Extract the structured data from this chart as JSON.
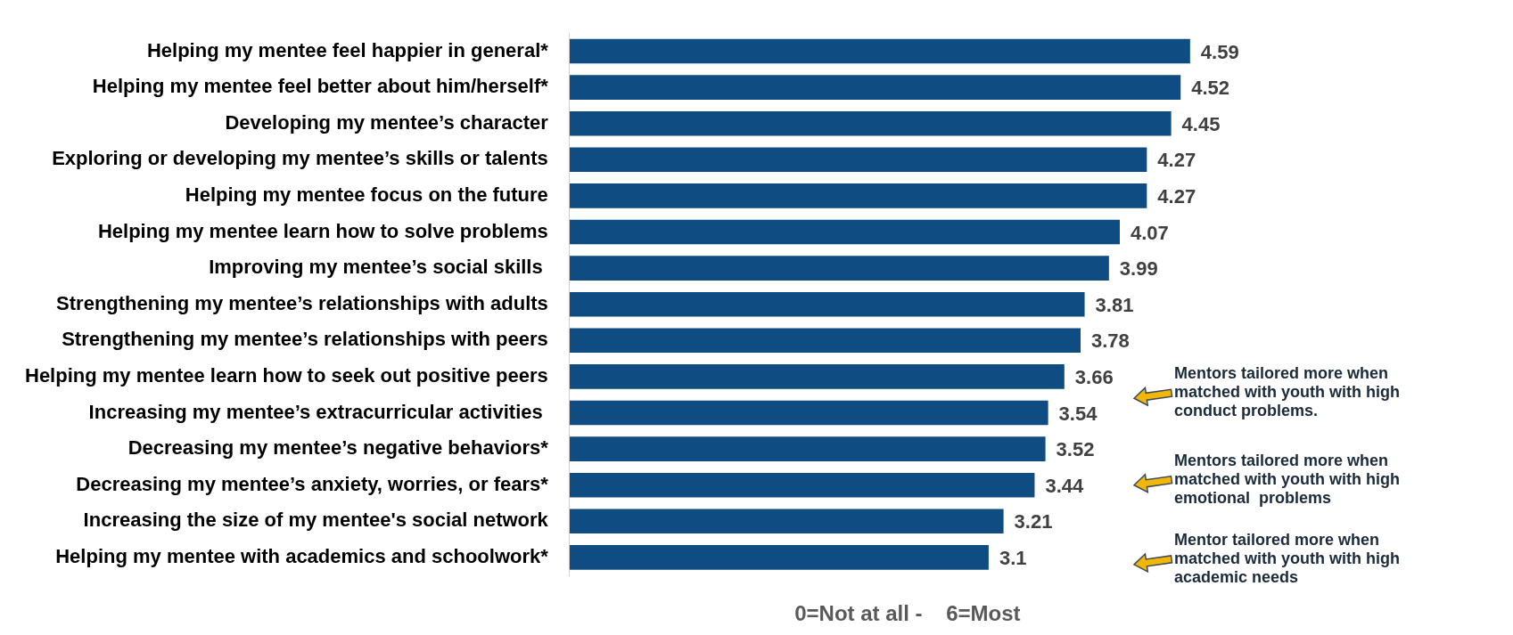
{
  "chart_data": {
    "type": "bar",
    "orientation": "horizontal",
    "categories": [
      "Helping my mentee feel happier in general*",
      "Helping my mentee feel better about him/herself*",
      "Developing my mentee’s character",
      "Exploring or developing my mentee’s skills or talents",
      "Helping my mentee focus on the future",
      "Helping my mentee learn how to solve problems",
      "Improving my mentee’s social skills ",
      "Strengthening my mentee’s relationships with adults",
      "Strengthening my mentee’s relationships with peers",
      "Helping my mentee learn how to seek out positive peers",
      "Increasing my mentee’s extracurricular activities ",
      "Decreasing my mentee’s negative behaviors*",
      "Decreasing my mentee’s anxiety, worries, or fears*",
      "Increasing the size of my mentee's social network",
      "Helping my mentee with academics and schoolwork*"
    ],
    "values": [
      4.59,
      4.52,
      4.45,
      4.27,
      4.27,
      4.07,
      3.99,
      3.81,
      3.78,
      3.66,
      3.54,
      3.52,
      3.44,
      3.21,
      3.1
    ],
    "color": "#0f4c81",
    "xlabel": "0=Not at all -    6=Most",
    "data_labels": true,
    "tick_labels": "y",
    "grid": false,
    "legend": false,
    "annotations": [
      "Mentors tailored more when matched with youth with high conduct problems.",
      "Mentors tailored more when matched with youth with high emotional  problems",
      "Mentor tailored more when matched with youth with high academic needs"
    ]
  }
}
